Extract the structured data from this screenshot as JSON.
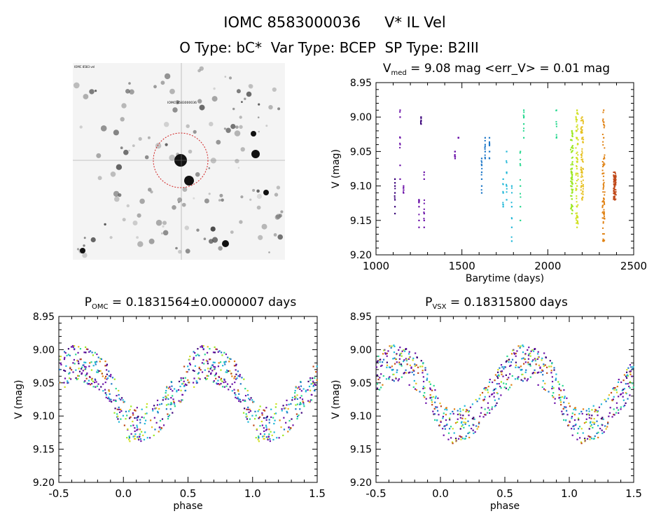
{
  "header": {
    "line1_id": "IOMC 8583000036",
    "line1_name": "V* IL Vel",
    "line2": "O Type: bC*  Var Type: BCEP  SP Type: B2III"
  },
  "thumbnail": {
    "corner_label": "IOMC 8583 vel",
    "target_label": "IOMC 8583000036"
  },
  "colors": {
    "ink": "#000000",
    "palette": [
      "#3a007a",
      "#6a10a8",
      "#1f78c8",
      "#20b8d8",
      "#28d890",
      "#9ae820",
      "#d0e020",
      "#e6c020",
      "#e08010",
      "#c04818"
    ]
  },
  "chart_data": [
    {
      "type": "scatter",
      "id": "lightcurve",
      "title_main": "V",
      "title_sub": "med",
      "title_rest": " = 9.08 mag <err_V> = 0.01 mag",
      "xlabel": "Barytime (days)",
      "ylabel": "V (mag)",
      "xlim": [
        1000,
        2500
      ],
      "ylim": [
        9.2,
        8.95
      ],
      "y_inverted": true,
      "xticks": [
        1000,
        1500,
        2000,
        2500
      ],
      "yticks": [
        "8.95",
        "9.00",
        "9.05",
        "9.10",
        "9.15",
        "9.20"
      ],
      "median_mag": 9.08,
      "mean_err": 0.01,
      "epochs": [
        {
          "t": 1110,
          "color": 0,
          "mags": [
            9.09,
            9.12,
            9.13,
            9.14,
            9.11,
            9.1
          ]
        },
        {
          "t": 1140,
          "color": 1,
          "mags": [
            8.99,
            9.0,
            9.03,
            9.07,
            9.09
          ]
        },
        {
          "t": 1160,
          "color": 1,
          "mags": [
            9.1,
            9.11
          ]
        },
        {
          "t": 1250,
          "color": 1,
          "mags": [
            9.12,
            9.15,
            9.16,
            9.13
          ]
        },
        {
          "t": 1262,
          "color": 0,
          "mags": [
            9.0,
            9.01
          ]
        },
        {
          "t": 1280,
          "color": 1,
          "mags": [
            9.08,
            9.09,
            9.14,
            9.15,
            9.16
          ]
        },
        {
          "t": 1460,
          "color": 1,
          "mags": [
            9.05,
            9.06
          ]
        },
        {
          "t": 1480,
          "color": 1,
          "mags": [
            9.03
          ]
        },
        {
          "t": 1615,
          "color": 2,
          "mags": [
            9.06,
            9.08,
            9.09,
            9.1,
            9.11,
            9.07
          ]
        },
        {
          "t": 1635,
          "color": 2,
          "mags": [
            9.03,
            9.04,
            9.05,
            9.06
          ]
        },
        {
          "t": 1660,
          "color": 2,
          "mags": [
            9.03,
            9.04,
            9.05,
            9.06
          ]
        },
        {
          "t": 1740,
          "color": 3,
          "mags": [
            9.09,
            9.11,
            9.13
          ]
        },
        {
          "t": 1760,
          "color": 3,
          "mags": [
            9.05,
            9.08,
            9.1,
            9.12
          ]
        },
        {
          "t": 1790,
          "color": 3,
          "mags": [
            9.1,
            9.13,
            9.16,
            9.18
          ]
        },
        {
          "t": 1840,
          "color": 4,
          "mags": [
            9.05,
            9.07,
            9.1,
            9.13,
            9.15
          ]
        },
        {
          "t": 1860,
          "color": 4,
          "mags": [
            8.99,
            9.0,
            9.01,
            9.03
          ]
        },
        {
          "t": 2050,
          "color": 4,
          "mags": [
            8.99,
            9.01,
            9.03
          ]
        },
        {
          "t": 2140,
          "color": 5,
          "mags": [
            9.02,
            9.05,
            9.08,
            9.11,
            9.14
          ]
        },
        {
          "t": 2170,
          "color": 6,
          "mags": [
            8.99,
            9.03,
            9.06,
            9.1,
            9.13,
            9.16
          ]
        },
        {
          "t": 2200,
          "color": 7,
          "mags": [
            9.0,
            9.03,
            9.08,
            9.12
          ]
        },
        {
          "t": 2325,
          "color": 8,
          "mags": [
            8.99,
            9.03,
            9.07,
            9.1,
            9.14,
            9.18
          ]
        },
        {
          "t": 2390,
          "color": 9,
          "mags": [
            9.08,
            9.1,
            9.12
          ]
        }
      ]
    },
    {
      "type": "scatter",
      "id": "phase_omc",
      "title_main": "P",
      "title_sub": "OMC",
      "title_rest": " = 0.1831564±0.0000007 days",
      "xlabel": "phase",
      "ylabel": "V (mag)",
      "xlim": [
        -0.5,
        1.5
      ],
      "ylim": [
        9.2,
        8.95
      ],
      "y_inverted": true,
      "xticks": [
        "-0.5",
        "0.0",
        "0.5",
        "1.0",
        "1.5"
      ],
      "yticks": [
        "8.95",
        "9.00",
        "9.05",
        "9.10",
        "9.15",
        "9.20"
      ],
      "period_days": 0.1831564,
      "period_err_days": 7e-07,
      "phase_shift": 0.0,
      "curve": {
        "mean": 9.065,
        "amp": 0.045,
        "min_phase": 0.15
      }
    },
    {
      "type": "scatter",
      "id": "phase_vsx",
      "title_main": "P",
      "title_sub": "VSX",
      "title_rest": " = 0.18315800 days",
      "xlabel": "phase",
      "ylabel": "V (mag)",
      "xlim": [
        -0.5,
        1.5
      ],
      "ylim": [
        9.2,
        8.95
      ],
      "y_inverted": true,
      "xticks": [
        "-0.5",
        "0.0",
        "0.5",
        "1.0",
        "1.5"
      ],
      "yticks": [
        "8.95",
        "9.00",
        "9.05",
        "9.10",
        "9.15",
        "9.20"
      ],
      "period_days": 0.183158,
      "phase_shift": 0.0,
      "curve": {
        "mean": 9.065,
        "amp": 0.045,
        "min_phase": 0.15
      }
    }
  ]
}
